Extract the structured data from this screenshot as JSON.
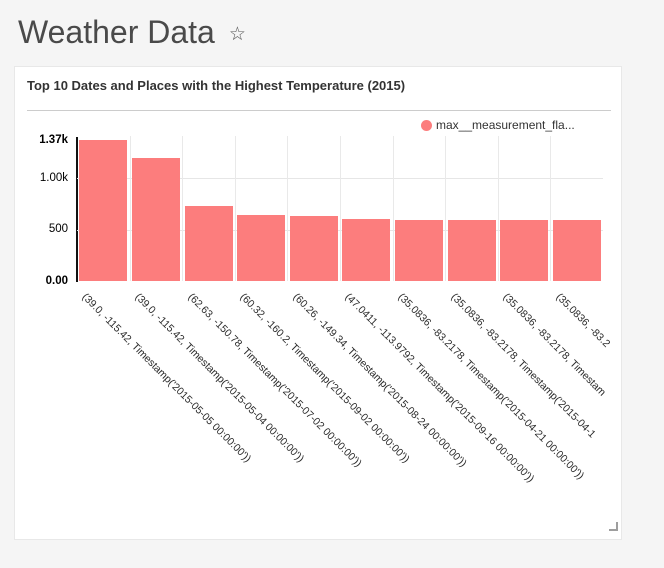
{
  "page": {
    "title": "Weather Data",
    "star_icon": "☆",
    "background_color": "#f5f5f5"
  },
  "card": {
    "title": "Top 10 Dates and Places with the Highest Temperature (2015)"
  },
  "legend": {
    "label": "max__measurement_fla...",
    "color": "#fc7d7d"
  },
  "chart_data": {
    "type": "bar",
    "title": "Top 10 Dates and Places with the Highest Temperature (2015)",
    "legend_position": "top-right",
    "bar_color": "#fc7d7d",
    "grid": true,
    "x_tick_rotation": 45,
    "ylim": [
      0,
      1370
    ],
    "y_ticks": [
      {
        "label": "0.00",
        "value": 0,
        "bold": true
      },
      {
        "label": "500",
        "value": 500,
        "bold": false
      },
      {
        "label": "1.00k",
        "value": 1000,
        "bold": false
      },
      {
        "label": "1.37k",
        "value": 1370,
        "bold": true
      }
    ],
    "categories": [
      "(39.0, -115.42, Timestamp('2015-05-05 00:00:00'))",
      "(39.0, -115.42, Timestamp('2015-05-04 00:00:00'))",
      "(62.63, -150.78, Timestamp('2015-07-02 00:00:00'))",
      "(60.32, -160.2, Timestamp('2015-09-02 00:00:00'))",
      "(60.26, -149.34, Timestamp('2015-08-24 00:00:00'))",
      "(47.0411, -113.9792, Timestamp('2015-09-16 00:00:00'))",
      "(35.0836, -83.2178, Timestamp('2015-04-21 00:00:00'))",
      "(35.0836, -83.2178, Timestamp('2015-04-1",
      "(35.0836, -83.2178, Timestam",
      "(35.0836, -83.2"
    ],
    "values": [
      1370,
      1198,
      729,
      639,
      636,
      605,
      594,
      594,
      593,
      593
    ],
    "series_name": "max__measurement_fla..."
  }
}
